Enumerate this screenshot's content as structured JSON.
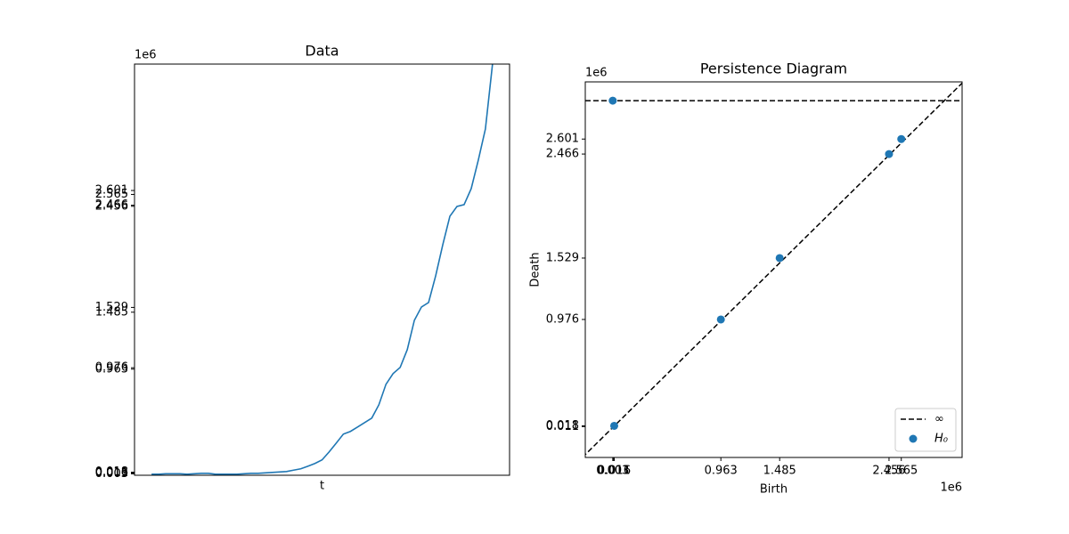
{
  "chart_data": [
    {
      "type": "line",
      "title": "Data",
      "xlabel": "t",
      "y_offset_label": "1e6",
      "x": [
        0,
        1,
        2,
        3,
        4,
        5,
        6,
        7,
        8,
        9,
        10,
        11,
        12,
        13,
        14,
        15,
        16,
        17,
        18,
        19,
        20,
        21,
        22,
        23,
        24,
        25,
        26,
        27,
        28,
        29,
        30,
        31,
        32,
        33,
        34,
        35,
        36,
        37,
        38,
        39,
        40,
        41,
        42,
        43,
        44,
        45,
        46,
        47,
        48
      ],
      "series": [
        {
          "name": "data",
          "color": "#1f77b4",
          "values": [
            0,
            0,
            0.004,
            0.004,
            0.004,
            0,
            0.004,
            0.008,
            0.008,
            0,
            0,
            0,
            0,
            0.004,
            0.008,
            0.008,
            0.012,
            0.016,
            0.02,
            0.024,
            0.037,
            0.049,
            0.073,
            0.098,
            0.131,
            0.204,
            0.285,
            0.367,
            0.392,
            0.432,
            0.473,
            0.514,
            0.636,
            0.824,
            0.922,
            0.979,
            1.142,
            1.411,
            1.533,
            1.574,
            1.819,
            2.104,
            2.365,
            2.455,
            2.471,
            2.618,
            2.879,
            3.165,
            3.76
          ]
        }
      ],
      "xlim": [
        -2.4,
        50.4
      ],
      "ylim": [
        -0.01,
        3.76
      ],
      "yticks": [
        0.003,
        0.011,
        0.016,
        0.018,
        0.963,
        0.976,
        1.485,
        1.529,
        2.456,
        2.466,
        2.565,
        2.601
      ]
    },
    {
      "type": "scatter",
      "title": "Persistence Diagram",
      "xlabel": "Birth",
      "ylabel": "Death",
      "x_offset_label": "1e6",
      "y_offset_label": "1e6",
      "series": [
        {
          "name": "H₀",
          "color": "#1f77b4",
          "x": [
            0.016,
            0.963,
            1.485,
            2.456,
            2.565,
            0.003
          ],
          "values": [
            0.018,
            0.976,
            1.529,
            2.466,
            2.601,
            2.947
          ]
        }
      ],
      "infinity": {
        "name": "∞",
        "value": 2.947,
        "color": "#000000"
      },
      "diagonal": true,
      "legend": "lower right",
      "xlim": [
        -0.241,
        3.105
      ],
      "ylim": [
        -0.267,
        3.116
      ],
      "xticks": [
        0.003,
        0.011,
        0.016,
        0.963,
        1.485,
        2.456,
        2.565
      ],
      "yticks": [
        0.011,
        0.018,
        0.976,
        1.529,
        2.466,
        2.601
      ]
    }
  ]
}
